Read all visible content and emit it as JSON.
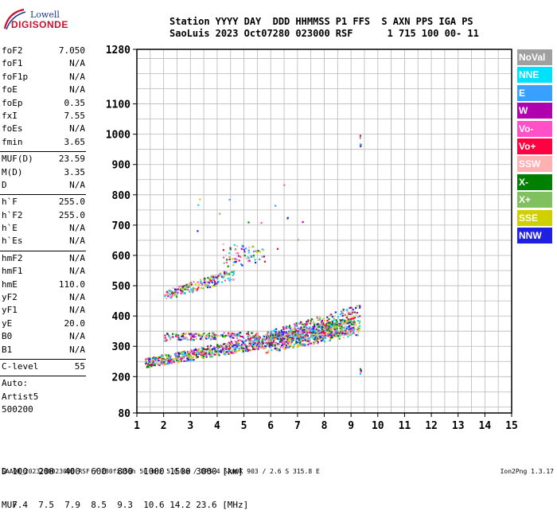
{
  "logo": {
    "line1": "Lowell",
    "line2": "DIGISONDE"
  },
  "header": {
    "labels": [
      "Station",
      "YYYY",
      "DAY",
      "DDD",
      "HHMMSS",
      "P1",
      "FFS",
      "S",
      "AXN",
      "PPS",
      "IGA",
      "PS"
    ],
    "values": [
      "SaoLuis",
      "2023",
      "Oct07",
      "280",
      "023000",
      "RSF",
      "1",
      "715",
      "100",
      "00-",
      "11"
    ]
  },
  "params_group1": [
    {
      "k": "foF2",
      "v": "7.050"
    },
    {
      "k": "foF1",
      "v": "N/A"
    },
    {
      "k": "foF1p",
      "v": "N/A"
    },
    {
      "k": "foE",
      "v": "N/A"
    },
    {
      "k": "foEp",
      "v": "0.35"
    },
    {
      "k": "fxI",
      "v": "7.55"
    },
    {
      "k": "foEs",
      "v": "N/A"
    },
    {
      "k": "fmin",
      "v": "3.65"
    }
  ],
  "params_group2": [
    {
      "k": "MUF(D)",
      "v": "23.59"
    },
    {
      "k": "M(D)",
      "v": "3.35"
    },
    {
      "k": "D",
      "v": "N/A"
    }
  ],
  "params_group3": [
    {
      "k": "h`F",
      "v": "255.0"
    },
    {
      "k": "h`F2",
      "v": "255.0"
    },
    {
      "k": "h`E",
      "v": "N/A"
    },
    {
      "k": "h`Es",
      "v": "N/A"
    }
  ],
  "params_group4": [
    {
      "k": "hmF2",
      "v": "N/A"
    },
    {
      "k": "hmF1",
      "v": "N/A"
    },
    {
      "k": "hmE",
      "v": "110.0"
    },
    {
      "k": "yF2",
      "v": "N/A"
    },
    {
      "k": "yF1",
      "v": "N/A"
    },
    {
      "k": "yE",
      "v": "20.0"
    },
    {
      "k": "B0",
      "v": "N/A"
    },
    {
      "k": "B1",
      "v": "N/A"
    }
  ],
  "clevel": {
    "k": "C-level",
    "v": "55"
  },
  "autoscale": [
    "Auto:",
    "Artist5",
    "500200"
  ],
  "legend": [
    {
      "label": "NoVal",
      "color": "#a0a0a0"
    },
    {
      "label": "NNE",
      "color": "#00e0ff"
    },
    {
      "label": "E",
      "color": "#3aa0ff"
    },
    {
      "label": "W",
      "color": "#b000b0"
    },
    {
      "label": "Vo-",
      "color": "#ff50c8"
    },
    {
      "label": "Vo+",
      "color": "#ff0040"
    },
    {
      "label": "SSW",
      "color": "#ffb0b0"
    },
    {
      "label": "X-",
      "color": "#008000"
    },
    {
      "label": "X+",
      "color": "#80c060"
    },
    {
      "label": "SSE",
      "color": "#d0d000"
    },
    {
      "label": "NNW",
      "color": "#2020e0"
    }
  ],
  "muf_table": {
    "d_label": "D",
    "d_values": [
      "100",
      "200",
      "400",
      "600",
      "800",
      "1000",
      "1500",
      "3000"
    ],
    "d_unit": "[km]",
    "muf_label": "MUF",
    "muf_values": [
      "7.4",
      "7.5",
      "7.9",
      "8.5",
      "9.3",
      "10.6",
      "14.2",
      "23.6"
    ],
    "muf_unit": "[MHz]"
  },
  "footer": {
    "left": "SAAOK_2023280023000.RSF / 280fx256h 50 kHz 5.0 km / DPS-4 SAAOK 903 / 2.6 S 315.8 E",
    "right": "Ion2Png 1.3.17"
  },
  "chart_data": {
    "type": "scatter",
    "title": "",
    "xlabel": "",
    "ylabel": "",
    "xlim": [
      1,
      15
    ],
    "ylim": [
      80,
      1280
    ],
    "x_ticks": [
      1,
      2,
      3,
      4,
      5,
      6,
      7,
      8,
      9,
      10,
      11,
      12,
      13,
      14,
      15
    ],
    "y_ticks": [
      80,
      200,
      300,
      400,
      500,
      600,
      700,
      800,
      900,
      1000,
      1100,
      1280
    ],
    "grid": true,
    "legend_position": "right",
    "clusters": [
      {
        "name": "F trace",
        "x_range": [
          1.3,
          9.1
        ],
        "h_start": [
          232,
          262
        ],
        "h_end": [
          345,
          400
        ],
        "count": 1100
      },
      {
        "name": "F2 spread",
        "x_range": [
          5.8,
          9.3
        ],
        "h_start": [
          280,
          350
        ],
        "h_end": [
          340,
          440
        ],
        "count": 500
      },
      {
        "name": "band 330",
        "x_range": [
          2.0,
          5.5
        ],
        "h_start": [
          320,
          345
        ],
        "h_end": [
          330,
          350
        ],
        "count": 160
      },
      {
        "name": "second hop",
        "x_range": [
          2.0,
          4.6
        ],
        "h_start": [
          455,
          485
        ],
        "h_end": [
          520,
          560
        ],
        "count": 190
      },
      {
        "name": "upper patch",
        "x_range": [
          4.2,
          5.8
        ],
        "h_start": [
          560,
          640
        ],
        "h_end": [
          580,
          630
        ],
        "count": 70
      },
      {
        "name": "sporadic",
        "x_range": [
          2.8,
          8.2
        ],
        "h_start": [
          620,
          850
        ],
        "h_end": [
          620,
          850
        ],
        "count": 14
      },
      {
        "name": "echo 980",
        "x_range": [
          9.3,
          9.35
        ],
        "h_start": [
          960,
          1000
        ],
        "h_end": [
          960,
          1000
        ],
        "count": 6
      },
      {
        "name": "echo 220",
        "x_range": [
          9.3,
          9.35
        ],
        "h_start": [
          205,
          235
        ],
        "h_end": [
          205,
          235
        ],
        "count": 5
      }
    ]
  }
}
